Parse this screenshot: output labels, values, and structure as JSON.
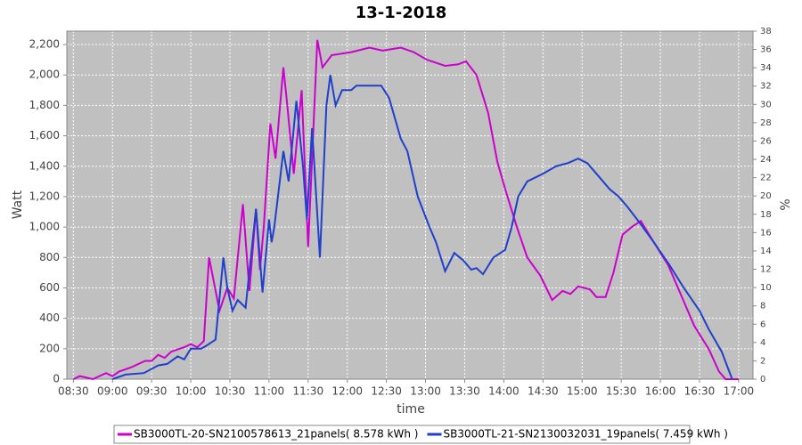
{
  "chart_data": {
    "type": "line",
    "title": "13-1-2018",
    "x_label": "time",
    "y_label": "Watt",
    "y2_label": "%",
    "xlim": [
      "08:25",
      "17:11"
    ],
    "xticks": [
      "08:30",
      "09:00",
      "09:30",
      "10:00",
      "10:30",
      "11:00",
      "11:30",
      "12:00",
      "12:30",
      "13:00",
      "13:30",
      "14:00",
      "14:30",
      "15:00",
      "15:30",
      "16:00",
      "16:30",
      "17:00"
    ],
    "ylim": [
      0,
      2288
    ],
    "yticks": [
      0,
      200,
      400,
      600,
      800,
      {
        "value": 1000,
        "label": "1,000"
      },
      {
        "value": 1200,
        "label": "1,200"
      },
      {
        "value": 1400,
        "label": "1,400"
      },
      {
        "value": 1600,
        "label": "1,600"
      },
      {
        "value": 1800,
        "label": "1,800"
      },
      {
        "value": 2000,
        "label": "2,000"
      },
      {
        "value": 2200,
        "label": "2,200"
      }
    ],
    "y2lim": [
      0,
      38
    ],
    "y2ticks": [
      0,
      2,
      4,
      6,
      8,
      10,
      12,
      14,
      16,
      18,
      20,
      22,
      24,
      26,
      28,
      30,
      32,
      34,
      36,
      38
    ],
    "grid": true,
    "series": [
      {
        "name": "SB3000TL-20-SN2100578613_21panels( 8.578 kWh )",
        "color": "#cc00cc",
        "x": [
          "08:30",
          "08:35",
          "08:45",
          "08:55",
          "09:00",
          "09:05",
          "09:15",
          "09:25",
          "09:30",
          "09:35",
          "09:40",
          "09:45",
          "09:55",
          "10:00",
          "10:05",
          "10:10",
          "10:14",
          "10:22",
          "10:28",
          "10:33",
          "10:40",
          "10:45",
          "10:50",
          "10:53",
          "10:56",
          "11:01",
          "11:05",
          "11:11",
          "11:14",
          "11:19",
          "11:25",
          "11:30",
          "11:37",
          "11:41",
          "11:48",
          "12:03",
          "12:17",
          "12:27",
          "12:41",
          "12:51",
          "13:01",
          "13:15",
          "13:25",
          "13:31",
          "13:39",
          "13:48",
          "13:55",
          "14:01",
          "14:10",
          "14:18",
          "14:28",
          "14:37",
          "14:45",
          "14:51",
          "14:57",
          "15:06",
          "15:11",
          "15:18",
          "15:24",
          "15:31",
          "15:38",
          "15:45",
          "15:55",
          "16:06",
          "16:16",
          "16:26",
          "16:37",
          "16:45",
          "16:50",
          "17:00"
        ],
        "values": [
          0,
          20,
          0,
          40,
          20,
          50,
          80,
          120,
          120,
          160,
          140,
          180,
          210,
          230,
          210,
          250,
          800,
          450,
          600,
          530,
          1150,
          580,
          1120,
          720,
          1000,
          1680,
          1450,
          2050,
          1800,
          1350,
          1900,
          870,
          2230,
          2050,
          2130,
          2150,
          2180,
          2160,
          2180,
          2150,
          2100,
          2060,
          2070,
          2090,
          2000,
          1750,
          1430,
          1250,
          1000,
          800,
          680,
          520,
          580,
          560,
          610,
          590,
          540,
          540,
          700,
          950,
          1000,
          1040,
          900,
          750,
          550,
          350,
          200,
          50,
          0,
          0
        ]
      },
      {
        "name": "SB3000TL-21-SN2130032031_19panels( 7.459 kWh )",
        "color": "#1f3fcc",
        "x": [
          "09:00",
          "09:10",
          "09:24",
          "09:35",
          "09:42",
          "09:50",
          "09:55",
          "10:00",
          "10:08",
          "10:12",
          "10:19",
          "10:25",
          "10:28",
          "10:32",
          "10:36",
          "10:42",
          "10:50",
          "10:55",
          "11:00",
          "11:02",
          "11:04",
          "11:11",
          "11:15",
          "11:21",
          "11:26",
          "11:29",
          "11:33",
          "11:39",
          "11:44",
          "11:47",
          "11:51",
          "11:56",
          "12:03",
          "12:07",
          "12:20",
          "12:26",
          "12:32",
          "12:41",
          "12:46",
          "12:54",
          "13:03",
          "13:08",
          "13:15",
          "13:22",
          "13:29",
          "13:35",
          "13:39",
          "13:44",
          "13:52",
          "14:01",
          "14:06",
          "14:11",
          "14:18",
          "14:30",
          "14:40",
          "14:49",
          "14:57",
          "15:04",
          "15:13",
          "15:21",
          "15:28",
          "15:35",
          "15:44",
          "15:55",
          "16:07",
          "16:18",
          "16:30",
          "16:37",
          "16:47",
          "16:55"
        ],
        "values": [
          0,
          30,
          40,
          90,
          100,
          150,
          130,
          200,
          200,
          220,
          260,
          800,
          600,
          450,
          520,
          470,
          1120,
          570,
          1050,
          900,
          1000,
          1500,
          1300,
          1830,
          1400,
          1050,
          1650,
          800,
          1800,
          2000,
          1800,
          1900,
          1900,
          1930,
          1930,
          1930,
          1850,
          1580,
          1500,
          1200,
          1000,
          900,
          710,
          830,
          780,
          720,
          730,
          690,
          800,
          850,
          1000,
          1200,
          1300,
          1350,
          1400,
          1420,
          1450,
          1420,
          1330,
          1250,
          1200,
          1130,
          1030,
          900,
          750,
          600,
          450,
          330,
          180,
          0
        ]
      }
    ]
  }
}
